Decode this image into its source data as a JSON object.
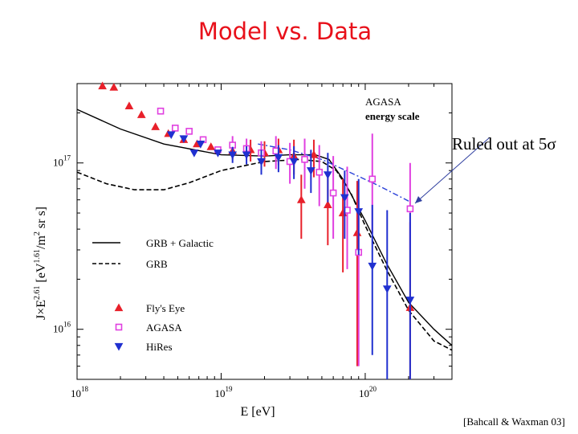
{
  "slide": {
    "title": "Model vs. Data",
    "annotation": "Ruled out at 5σ",
    "citation": "[Bahcall & Waxman 03]"
  },
  "colors": {
    "title": "#e8101a",
    "flys_eye": "#e8202a",
    "agasa": "#e040e0",
    "hires": "#2030d0",
    "ruled_out_line": "#2a40d8"
  },
  "chart_data": {
    "type": "scatter",
    "xlabel": "E  [eV]",
    "ylabel_parts": [
      "J×E",
      "2.61",
      " [eV",
      "1.61",
      "/m",
      "2",
      " sr s]"
    ],
    "x_scale": "log",
    "y_scale": "log",
    "xlim": [
      1e+18,
      4e+20
    ],
    "ylim": [
      5000000000000000.0,
      3e+17
    ],
    "x_ticks": [
      {
        "value": 1e+18,
        "base": "10",
        "exp": "18"
      },
      {
        "value": 1e+19,
        "base": "10",
        "exp": "19"
      },
      {
        "value": 1e+20,
        "base": "10",
        "exp": "20"
      }
    ],
    "y_ticks": [
      {
        "value": 1e+16,
        "base": "10",
        "exp": "16"
      },
      {
        "value": 1e+17,
        "base": "10",
        "exp": "17"
      }
    ],
    "inplot_note": [
      "AGASA",
      "energy scale"
    ],
    "legend_lines": [
      {
        "label": "GRB + Galactic",
        "style": "solid"
      },
      {
        "label": "GRB",
        "style": "dashed"
      }
    ],
    "legend_markers": [
      {
        "label": "Fly's Eye",
        "marker": "triangle-up",
        "series": "flys_eye"
      },
      {
        "label": "AGASA",
        "marker": "square",
        "series": "agasa"
      },
      {
        "label": "HiRes",
        "marker": "triangle-down",
        "series": "hires"
      }
    ],
    "lines": [
      {
        "name": "GRB + Galactic",
        "style": "solid",
        "points": [
          [
            1e+18,
            2.1e+17
          ],
          [
            2e+18,
            1.6e+17
          ],
          [
            4e+18,
            1.3e+17
          ],
          [
            1e+19,
            1.12e+17
          ],
          [
            2e+19,
            1.1e+17
          ],
          [
            3e+19,
            1.12e+17
          ],
          [
            4.5e+19,
            1.12e+17
          ],
          [
            5.6e+19,
            1.05e+17
          ],
          [
            7e+19,
            8e+16
          ],
          [
            1e+20,
            4.5e+16
          ],
          [
            1.4e+20,
            2.5e+16
          ],
          [
            2e+20,
            1.45e+16
          ],
          [
            3e+20,
            1e+16
          ],
          [
            4e+20,
            8000000000000000.0
          ]
        ]
      },
      {
        "name": "GRB",
        "style": "dashed",
        "points": [
          [
            1e+18,
            8.8e+16
          ],
          [
            1.6e+18,
            7.5e+16
          ],
          [
            2.5e+18,
            6.9e+16
          ],
          [
            4e+18,
            6.9e+16
          ],
          [
            6e+18,
            7.6e+16
          ],
          [
            1e+19,
            9e+16
          ],
          [
            2e+19,
            1.02e+17
          ],
          [
            3.5e+19,
            1.05e+17
          ],
          [
            5e+19,
            1.02e+17
          ],
          [
            6.3e+19,
            9e+16
          ],
          [
            8e+19,
            6.5e+16
          ],
          [
            1e+20,
            4.2e+16
          ],
          [
            1.4e+20,
            2.3e+16
          ],
          [
            2e+20,
            1.3e+16
          ],
          [
            3e+20,
            8500000000000000.0
          ],
          [
            4e+20,
            7500000000000000.0
          ]
        ]
      },
      {
        "name": "Ruled out at 5σ",
        "style": "dashdot",
        "points": [
          [
            1.8e+19,
            1.3e+17
          ],
          [
            3e+19,
            1.2e+17
          ],
          [
            5e+19,
            1.05e+17
          ],
          [
            8e+19,
            8.7e+16
          ],
          [
            1.2e+20,
            7.4e+16
          ],
          [
            2e+20,
            5.9e+16
          ]
        ]
      }
    ],
    "series": [
      {
        "name": "Fly's Eye",
        "key": "flys_eye",
        "points": [
          {
            "x": 1.5e+18,
            "y": 2.9e+17,
            "lo": null,
            "hi": null
          },
          {
            "x": 1.8e+18,
            "y": 2.85e+17,
            "lo": null,
            "hi": null
          },
          {
            "x": 2.3e+18,
            "y": 2.2e+17,
            "lo": null,
            "hi": null
          },
          {
            "x": 2.8e+18,
            "y": 1.95e+17,
            "lo": null,
            "hi": null
          },
          {
            "x": 3.5e+18,
            "y": 1.65e+17,
            "lo": null,
            "hi": null
          },
          {
            "x": 4.3e+18,
            "y": 1.5e+17,
            "lo": null,
            "hi": null
          },
          {
            "x": 5.5e+18,
            "y": 1.38e+17,
            "lo": null,
            "hi": null
          },
          {
            "x": 6.8e+18,
            "y": 1.3e+17,
            "lo": null,
            "hi": null
          },
          {
            "x": 8.5e+18,
            "y": 1.25e+17,
            "lo": null,
            "hi": null
          },
          {
            "x": 1.2e+19,
            "y": 1.18e+17,
            "lo": 1.05e+17,
            "hi": 1.3e+17
          },
          {
            "x": 1.6e+19,
            "y": 1.2e+17,
            "lo": 1.02e+17,
            "hi": 1.38e+17
          },
          {
            "x": 2e+19,
            "y": 1.15e+17,
            "lo": 9.5e+16,
            "hi": 1.35e+17
          },
          {
            "x": 2.5e+19,
            "y": 1.2e+17,
            "lo": 9.7e+16,
            "hi": 1.4e+17
          },
          {
            "x": 3.2e+19,
            "y": 1.1e+17,
            "lo": 8.5e+16,
            "hi": 1.38e+17
          },
          {
            "x": 3.6e+19,
            "y": 6e+16,
            "lo": 3.5e+16,
            "hi": 8.5e+16
          },
          {
            "x": 4.4e+19,
            "y": 1.12e+17,
            "lo": 8.2e+16,
            "hi": 1.38e+17
          },
          {
            "x": 5.5e+19,
            "y": 5.6e+16,
            "lo": 3.2e+16,
            "hi": 8.5e+16
          },
          {
            "x": 7e+19,
            "y": 5e+16,
            "lo": 2.2e+16,
            "hi": 8e+16
          },
          {
            "x": 8.8e+19,
            "y": 3.8e+16,
            "lo": 6000000000000000.0,
            "hi": 7.8e+16
          },
          {
            "x": 2.05e+20,
            "y": 1.35e+16,
            "lo": 5000000000000000.0,
            "hi": 4.4e+16
          }
        ]
      },
      {
        "name": "AGASA",
        "key": "agasa",
        "points": [
          {
            "x": 3.8e+18,
            "y": 2.05e+17,
            "lo": null,
            "hi": null
          },
          {
            "x": 4.8e+18,
            "y": 1.62e+17,
            "lo": null,
            "hi": null
          },
          {
            "x": 6e+18,
            "y": 1.55e+17,
            "lo": null,
            "hi": null
          },
          {
            "x": 7.5e+18,
            "y": 1.38e+17,
            "lo": null,
            "hi": null
          },
          {
            "x": 9.5e+18,
            "y": 1.2e+17,
            "lo": null,
            "hi": null
          },
          {
            "x": 1.2e+19,
            "y": 1.28e+17,
            "lo": 1.1e+17,
            "hi": 1.45e+17
          },
          {
            "x": 1.5e+19,
            "y": 1.22e+17,
            "lo": 1.05e+17,
            "hi": 1.4e+17
          },
          {
            "x": 1.9e+19,
            "y": 1.15e+17,
            "lo": 9.5e+16,
            "hi": 1.35e+17
          },
          {
            "x": 2.4e+19,
            "y": 1.18e+17,
            "lo": 9.2e+16,
            "hi": 1.45e+17
          },
          {
            "x": 3e+19,
            "y": 1.02e+17,
            "lo": 7.5e+16,
            "hi": 1.32e+17
          },
          {
            "x": 3.8e+19,
            "y": 1.05e+17,
            "lo": 7e+16,
            "hi": 1.4e+17
          },
          {
            "x": 4.8e+19,
            "y": 8.8e+16,
            "lo": 5.5e+16,
            "hi": 1.28e+17
          },
          {
            "x": 6e+19,
            "y": 6.6e+16,
            "lo": 3.5e+16,
            "hi": 1.1e+17
          },
          {
            "x": 7.5e+19,
            "y": 5.2e+16,
            "lo": 2.3e+16,
            "hi": 9.5e+16
          },
          {
            "x": 9e+19,
            "y": 2.9e+16,
            "lo": 6000000000000000.0,
            "hi": 6e+16
          },
          {
            "x": 1.12e+20,
            "y": 8e+16,
            "lo": 3.8e+16,
            "hi": 1.5e+17
          },
          {
            "x": 2.05e+20,
            "y": 5.3e+16,
            "lo": 3e+16,
            "hi": 1e+17
          }
        ]
      },
      {
        "name": "HiRes",
        "key": "hires",
        "points": [
          {
            "x": 4.5e+18,
            "y": 1.48e+17,
            "lo": null,
            "hi": null
          },
          {
            "x": 5.5e+18,
            "y": 1.4e+17,
            "lo": null,
            "hi": null
          },
          {
            "x": 6.5e+18,
            "y": 1.15e+17,
            "lo": null,
            "hi": null
          },
          {
            "x": 7.2e+18,
            "y": 1.3e+17,
            "lo": null,
            "hi": null
          },
          {
            "x": 9.5e+18,
            "y": 1.15e+17,
            "lo": null,
            "hi": null
          },
          {
            "x": 1.2e+19,
            "y": 1.12e+17,
            "lo": 1e+17,
            "hi": 1.25e+17
          },
          {
            "x": 1.5e+19,
            "y": 1.12e+17,
            "lo": 9.8e+16,
            "hi": 1.26e+17
          },
          {
            "x": 1.9e+19,
            "y": 1.02e+17,
            "lo": 8.5e+16,
            "hi": 1.2e+17
          },
          {
            "x": 2.5e+19,
            "y": 1.08e+17,
            "lo": 8.8e+16,
            "hi": 1.28e+17
          },
          {
            "x": 3.2e+19,
            "y": 1.02e+17,
            "lo": 8e+16,
            "hi": 1.26e+17
          },
          {
            "x": 4.2e+19,
            "y": 9e+16,
            "lo": 6.6e+16,
            "hi": 1.2e+17
          },
          {
            "x": 5.5e+19,
            "y": 8.5e+16,
            "lo": 5.8e+16,
            "hi": 1.15e+17
          },
          {
            "x": 7.2e+19,
            "y": 6.2e+16,
            "lo": 3.5e+16,
            "hi": 9e+16
          },
          {
            "x": 9e+19,
            "y": 5.1e+16,
            "lo": 2.8e+16,
            "hi": 8e+16
          },
          {
            "x": 1.12e+20,
            "y": 2.4e+16,
            "lo": 7000000000000000.0,
            "hi": 5.6e+16
          },
          {
            "x": 1.42e+20,
            "y": 1.75e+16,
            "lo": 5000000000000000.0,
            "hi": 5.2e+16
          },
          {
            "x": 2.05e+20,
            "y": 1.5e+16,
            "lo": 5000000000000000.0,
            "hi": 5e+16
          }
        ]
      }
    ]
  }
}
